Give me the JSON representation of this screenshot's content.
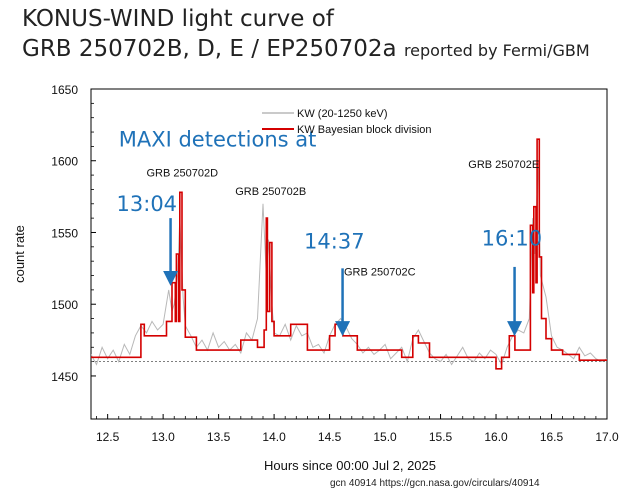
{
  "title_line1": "KONUS-WIND light curve of",
  "title_line2_main": "GRB 250702B, D, E / EP250702a",
  "title_line2_suffix": "reported by Fermi/GBM",
  "footer": "gcn 40914  https://gcn.nasa.gov/circulars/40914",
  "colors": {
    "raw": "#b8b8b8",
    "blocks": "#d40000",
    "arrow": "#1f72b8",
    "annotation": "#1f72b8"
  },
  "chart_data": {
    "type": "line",
    "xlabel": "Hours since 00:00 Jul 2, 2025",
    "ylabel": "count rate",
    "xlim": [
      12.35,
      17.0
    ],
    "ylim": [
      1420,
      1650
    ],
    "xticks": [
      12.5,
      13.0,
      13.5,
      14.0,
      14.5,
      15.0,
      15.5,
      16.0,
      16.5,
      17.0
    ],
    "xtick_labels": [
      "12.5",
      "13.0",
      "13.5",
      "14.0",
      "14.5",
      "15.0",
      "15.5",
      "16.0",
      "16.5",
      "17.0"
    ],
    "yticks": [
      1450,
      1500,
      1550,
      1600,
      1650
    ],
    "ytick_labels": [
      "1450",
      "1500",
      "1550",
      "1600",
      "1650"
    ],
    "background_level": 1460,
    "legend": {
      "position": "top-right",
      "entries": [
        "KW (20-1250 keV)",
        "KW Bayesian block division"
      ]
    },
    "series": [
      {
        "name": "KW (20-1250 keV)",
        "style": "raw",
        "x": [
          12.35,
          12.4,
          12.45,
          12.5,
          12.55,
          12.6,
          12.65,
          12.7,
          12.75,
          12.8,
          12.85,
          12.9,
          12.95,
          13.0,
          13.05,
          13.08,
          13.1,
          13.13,
          13.15,
          13.18,
          13.2,
          13.25,
          13.3,
          13.35,
          13.4,
          13.45,
          13.5,
          13.55,
          13.6,
          13.65,
          13.7,
          13.75,
          13.8,
          13.85,
          13.9,
          13.93,
          13.95,
          13.98,
          14.0,
          14.05,
          14.1,
          14.15,
          14.2,
          14.25,
          14.3,
          14.35,
          14.4,
          14.45,
          14.5,
          14.55,
          14.6,
          14.65,
          14.7,
          14.75,
          14.8,
          14.85,
          14.9,
          14.95,
          15.0,
          15.05,
          15.1,
          15.15,
          15.2,
          15.25,
          15.3,
          15.35,
          15.4,
          15.45,
          15.5,
          15.55,
          15.6,
          15.65,
          15.7,
          15.75,
          15.8,
          15.85,
          15.9,
          15.95,
          16.0,
          16.05,
          16.1,
          16.15,
          16.2,
          16.25,
          16.3,
          16.33,
          16.35,
          16.38,
          16.4,
          16.45,
          16.5,
          16.55,
          16.6,
          16.65,
          16.7,
          16.75,
          16.8,
          16.85,
          16.9,
          16.95,
          17.0
        ],
        "y": [
          1465,
          1458,
          1470,
          1462,
          1468,
          1460,
          1472,
          1465,
          1478,
          1485,
          1480,
          1488,
          1482,
          1486,
          1510,
          1495,
          1500,
          1520,
          1560,
          1505,
          1485,
          1478,
          1470,
          1475,
          1468,
          1480,
          1470,
          1474,
          1468,
          1472,
          1466,
          1480,
          1475,
          1490,
          1570,
          1520,
          1545,
          1500,
          1480,
          1478,
          1486,
          1475,
          1485,
          1478,
          1480,
          1470,
          1472,
          1466,
          1478,
          1486,
          1490,
          1484,
          1476,
          1472,
          1466,
          1470,
          1465,
          1468,
          1472,
          1462,
          1466,
          1470,
          1460,
          1476,
          1482,
          1474,
          1466,
          1462,
          1460,
          1465,
          1458,
          1464,
          1470,
          1462,
          1460,
          1466,
          1462,
          1468,
          1465,
          1458,
          1470,
          1478,
          1482,
          1480,
          1490,
          1560,
          1535,
          1600,
          1520,
          1505,
          1478,
          1470,
          1468,
          1465,
          1462,
          1470,
          1464,
          1466,
          1462,
          1460,
          1462
        ]
      },
      {
        "name": "KW Bayesian block division",
        "style": "blocks",
        "x": [
          12.35,
          12.8,
          12.83,
          13.03,
          13.08,
          13.11,
          13.12,
          13.14,
          13.15,
          13.17,
          13.2,
          13.3,
          13.55,
          13.7,
          13.85,
          13.91,
          13.93,
          13.94,
          13.96,
          13.98,
          14.0,
          14.15,
          14.3,
          14.5,
          14.55,
          14.62,
          14.75,
          14.95,
          15.15,
          15.25,
          15.3,
          15.4,
          15.8,
          16.0,
          16.05,
          16.12,
          16.17,
          16.28,
          16.31,
          16.33,
          16.34,
          16.36,
          16.37,
          16.39,
          16.41,
          16.45,
          16.5,
          16.6,
          16.75,
          17.0
        ],
        "y": [
          1463,
          1486,
          1478,
          1488,
          1515,
          1488,
          1535,
          1488,
          1578,
          1510,
          1477,
          1468,
          1468,
          1475,
          1470,
          1482,
          1560,
          1495,
          1543,
          1488,
          1478,
          1486,
          1468,
          1478,
          1486,
          1478,
          1468,
          1468,
          1463,
          1478,
          1473,
          1463,
          1463,
          1455,
          1463,
          1478,
          1468,
          1468,
          1555,
          1508,
          1568,
          1515,
          1615,
          1533,
          1490,
          1476,
          1468,
          1465,
          1461,
          1461
        ]
      }
    ],
    "annotations": [
      {
        "text": "GRB 250702D",
        "x": 12.85,
        "y": 1589,
        "color": "#111111"
      },
      {
        "text": "GRB 250702B",
        "x": 13.65,
        "y": 1576,
        "color": "#111111"
      },
      {
        "text": "GRB 250702C",
        "x": 14.63,
        "y": 1520,
        "color": "#111111"
      },
      {
        "text": "GRB 250702E",
        "x": 15.75,
        "y": 1595,
        "color": "#111111"
      },
      {
        "text": "MAXI detections at",
        "x": 12.6,
        "y": 1610,
        "color": "#1f72b8",
        "size": "large"
      },
      {
        "text": "13:04",
        "x": 12.58,
        "y": 1565,
        "color": "#1f72b8",
        "size": "large"
      },
      {
        "text": "14:37",
        "x": 14.27,
        "y": 1539,
        "color": "#1f72b8",
        "size": "large"
      },
      {
        "text": "16:10",
        "x": 15.87,
        "y": 1541,
        "color": "#1f72b8",
        "size": "large"
      }
    ],
    "arrows": [
      {
        "x": 13.067,
        "y_from": 1560,
        "y_to": 1518
      },
      {
        "x": 14.617,
        "y_from": 1525,
        "y_to": 1483
      },
      {
        "x": 16.167,
        "y_from": 1526,
        "y_to": 1483
      }
    ]
  }
}
